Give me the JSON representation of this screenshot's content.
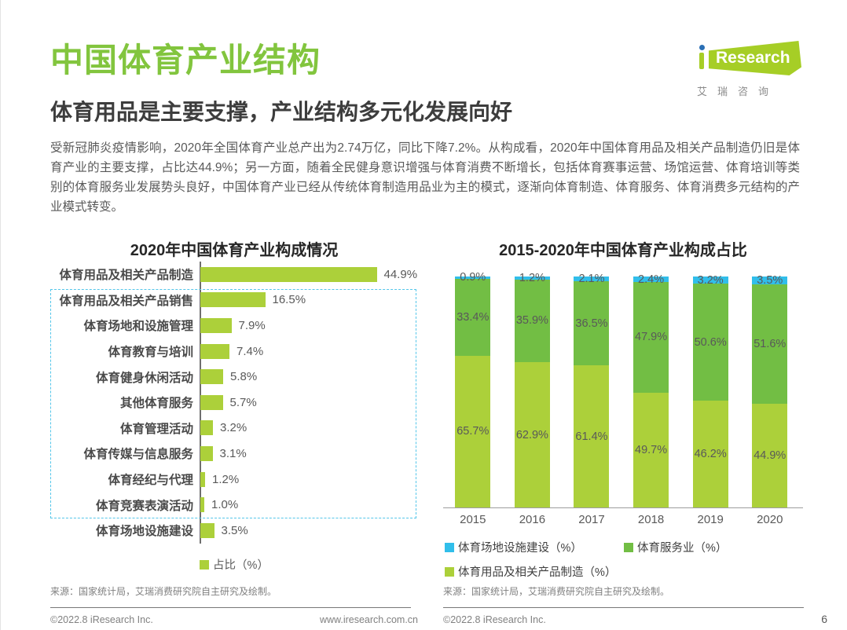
{
  "header": {
    "title": "中国体育产业结构",
    "subtitle": "体育用品是主要支撑，产业结构多元化发展向好",
    "logo": {
      "i": "i",
      "brand": "Research",
      "subtext": "艾瑞咨询"
    }
  },
  "intro": "受新冠肺炎疫情影响，2020年全国体育产业总产出为2.74万亿，同比下降7.2%。从构成看，2020年中国体育用品及相关产品制造仍旧是体育产业的主要支撑，占比达44.9%；另一方面，随着全民健身意识增强与体育消费不断增长，包括体育赛事运营、场馆运营、体育培训等类别的体育服务业发展势头良好，中国体育产业已经从传统体育制造用品业为主的模式，逐渐向体育制造、体育服务、体育消费多元结构的产业模式转变。",
  "colors": {
    "brand_green": "#82C53E",
    "bar_light_green": "#ACD03A",
    "service_green": "#72BE44",
    "construction_cyan": "#31BEEA",
    "highlight_box_cyan": "#54C6EA"
  },
  "chart_data": [
    {
      "type": "bar",
      "orientation": "horizontal",
      "title": "2020年中国体育产业构成情况",
      "categories": [
        "体育用品及相关产品制造",
        "体育用品及相关产品销售",
        "体育场地和设施管理",
        "体育教育与培训",
        "体育健身休闲活动",
        "其他体育服务",
        "体育管理活动",
        "体育传媒与信息服务",
        "体育经纪与代理",
        "体育竞赛表演活动",
        "体育场地设施建设"
      ],
      "values": [
        44.9,
        16.5,
        7.9,
        7.4,
        5.8,
        5.7,
        3.2,
        3.1,
        1.2,
        1.0,
        3.5
      ],
      "unit": "%",
      "xlim": [
        0,
        47
      ],
      "bar_color": "#ACD03A",
      "legend": [
        {
          "label": "占比（%）",
          "color": "#ACD03A"
        }
      ],
      "highlight_box": {
        "first_row": 2,
        "last_row": 10,
        "color": "#54C6EA"
      },
      "source": "来源：国家统计局，艾瑞消费研究院自主研究及绘制。"
    },
    {
      "type": "stacked-bar",
      "title": "2015-2020年中国体育产业构成占比",
      "categories": [
        "2015",
        "2016",
        "2017",
        "2018",
        "2019",
        "2020"
      ],
      "series": [
        {
          "name": "体育用品及相关产品制造（%）",
          "color": "#ACD03A",
          "values": [
            65.7,
            62.9,
            61.4,
            49.7,
            46.2,
            44.9
          ]
        },
        {
          "name": "体育服务业（%）",
          "color": "#72BE44",
          "values": [
            33.4,
            35.9,
            36.5,
            47.9,
            50.6,
            51.6
          ]
        },
        {
          "name": "体育场地设施建设（%）",
          "color": "#31BEEA",
          "values": [
            0.9,
            1.2,
            2.1,
            2.4,
            3.2,
            3.5
          ]
        }
      ],
      "stack_order": "bottom-to-top",
      "legend_order": [
        "体育场地设施建设（%）",
        "体育服务业（%）",
        "体育用品及相关产品制造（%）"
      ],
      "ylim": [
        0,
        100
      ],
      "grid": false,
      "source": "来源：国家统计局，艾瑞消费研究院自主研究及绘制。"
    }
  ],
  "footer": {
    "copyright": "©2022.8 iResearch Inc.",
    "website": "www.iresearch.com.cn",
    "page_number": "6"
  }
}
